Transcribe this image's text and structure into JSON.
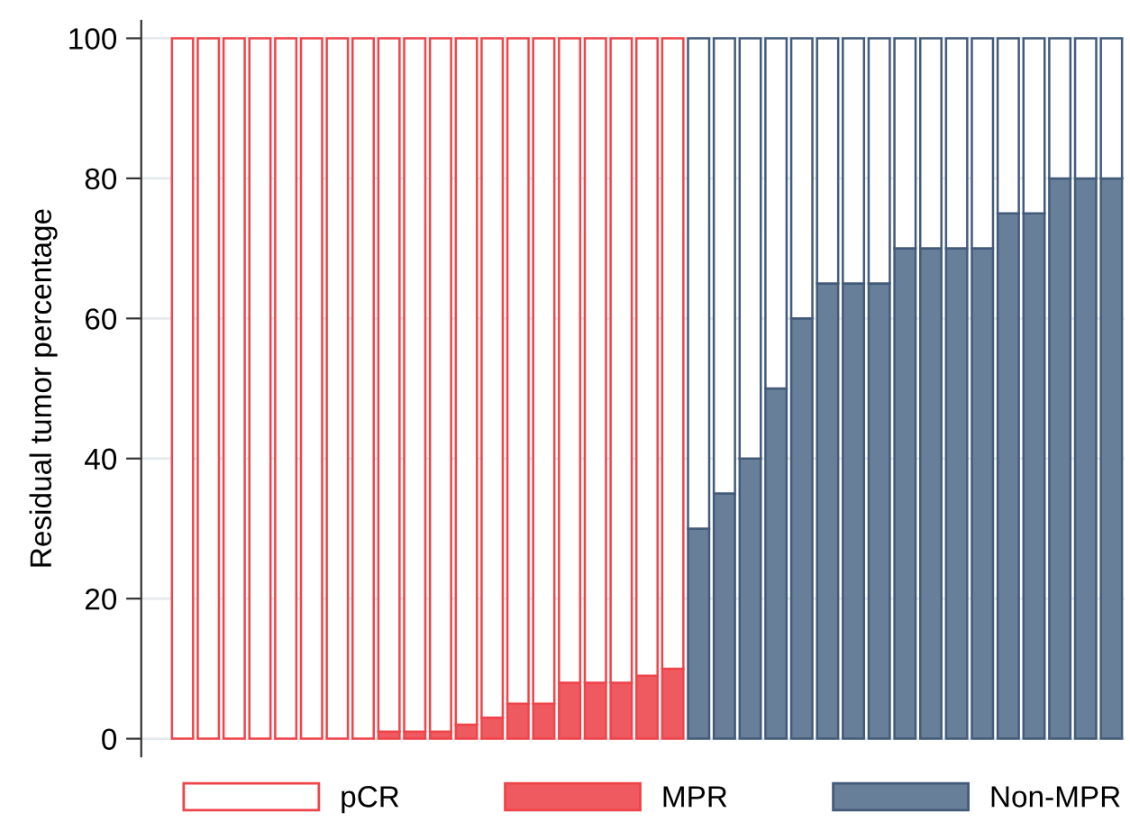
{
  "chart_data": {
    "type": "bar",
    "stacked": true,
    "ylabel": "Residual tumor percentage",
    "categories": [
      null,
      null,
      null,
      null,
      null,
      null,
      null,
      null,
      null,
      null,
      null,
      null,
      null,
      null,
      null,
      null,
      null,
      null,
      null,
      null,
      null,
      null,
      null,
      null,
      null,
      null,
      null,
      null,
      null,
      null,
      null,
      null,
      null,
      null,
      null,
      null,
      null
    ],
    "series": [
      {
        "name": "pCR",
        "color": "#ffffff",
        "values": [
          100,
          100,
          100,
          100,
          100,
          100,
          100,
          100,
          null,
          null,
          null,
          null,
          null,
          null,
          null,
          null,
          null,
          null,
          null,
          null,
          null,
          null,
          null,
          null,
          null,
          null,
          null,
          null,
          null,
          null,
          null,
          null,
          null,
          null,
          null,
          null,
          null
        ]
      },
      {
        "name": "MPR",
        "color": "#ef5a61",
        "values": [
          null,
          null,
          null,
          null,
          null,
          null,
          null,
          null,
          1,
          1,
          1,
          2,
          3,
          5,
          5,
          8,
          8,
          8,
          9,
          10,
          null,
          null,
          null,
          null,
          null,
          null,
          null,
          null,
          null,
          null,
          null,
          null,
          null,
          null,
          null,
          null,
          null
        ]
      },
      {
        "name": "Non-MPR",
        "color": "#677f98",
        "values": [
          null,
          null,
          null,
          null,
          null,
          null,
          null,
          null,
          null,
          null,
          null,
          null,
          null,
          null,
          null,
          null,
          null,
          null,
          null,
          null,
          30,
          35,
          40,
          50,
          60,
          65,
          65,
          65,
          70,
          70,
          70,
          70,
          75,
          75,
          80,
          80,
          80
        ]
      },
      {
        "color": "#ffffff",
        "values": [
          null,
          null,
          null,
          null,
          null,
          null,
          null,
          null,
          99,
          99,
          99,
          98,
          97,
          95,
          95,
          92,
          92,
          92,
          91,
          90,
          70,
          65,
          60,
          50,
          40,
          35,
          35,
          35,
          30,
          30,
          30,
          30,
          25,
          25,
          20,
          20,
          20
        ]
      }
    ],
    "ylim": [
      -2.5,
      102.5
    ],
    "yticks": [
      0,
      20,
      40,
      60,
      80,
      100
    ],
    "grid": "y",
    "legend": "bottom"
  }
}
